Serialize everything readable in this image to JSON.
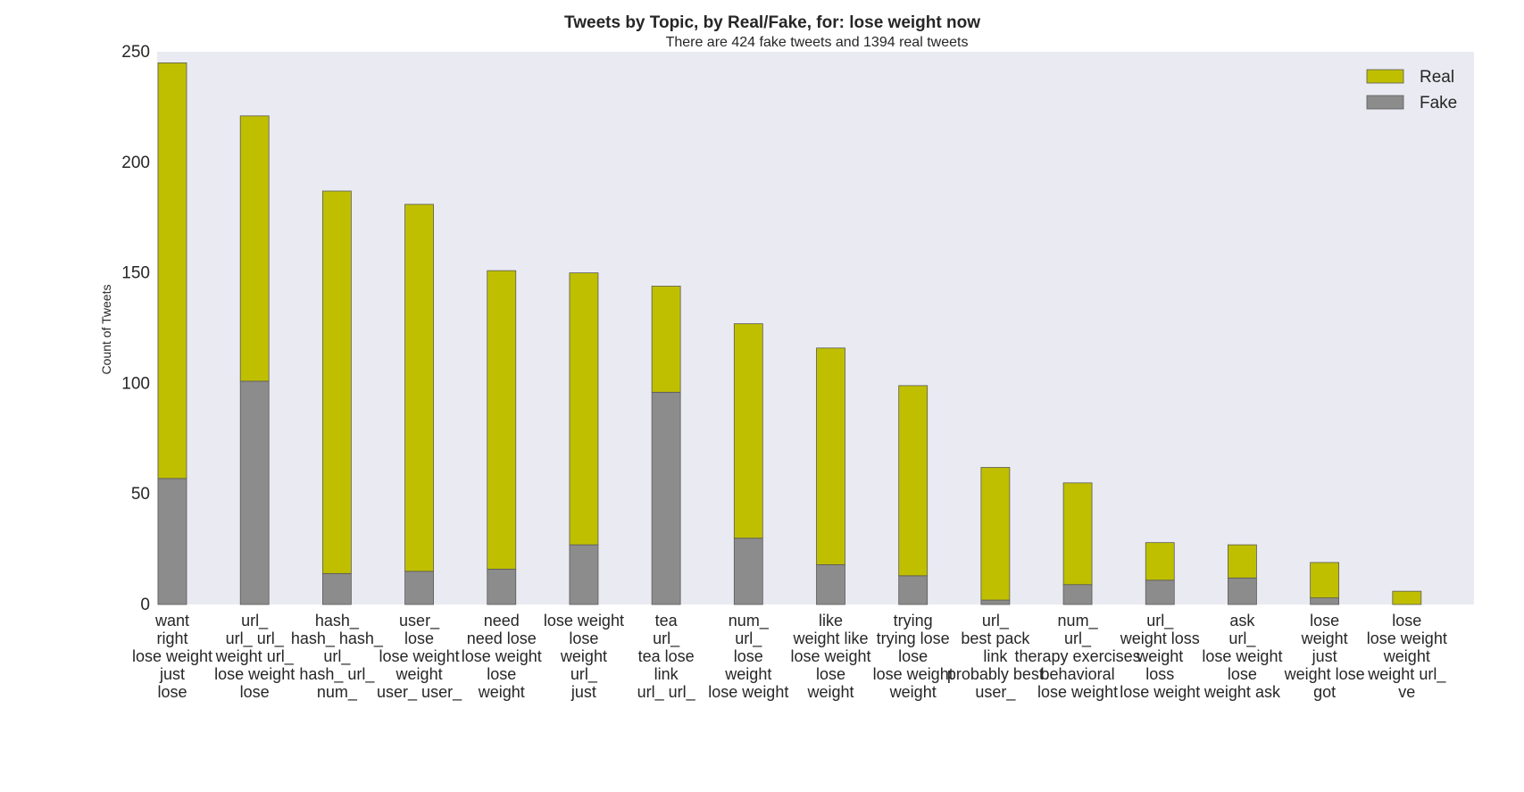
{
  "chart_data": {
    "type": "bar",
    "stacked": true,
    "title": "Tweets by Topic, by Real/Fake, for: lose weight now",
    "subtitle": "There are 424 fake tweets and 1394 real tweets",
    "xlabel": "",
    "ylabel": "Count of Tweets",
    "ylim": [
      0,
      250
    ],
    "yticks": [
      "0",
      "50",
      "100",
      "150",
      "200",
      "250"
    ],
    "grid": false,
    "legend_position": "top-right",
    "colors": {
      "Real": "#bfbf00",
      "Fake": "#8c8c8c",
      "plot_background": "#eaeaf2"
    },
    "categories": [
      [
        "want",
        "right",
        "lose weight",
        "just",
        "lose"
      ],
      [
        "url_",
        "url_ url_",
        "weight url_",
        "lose weight",
        "lose"
      ],
      [
        "hash_",
        "hash_ hash_",
        "url_",
        "hash_ url_",
        "num_"
      ],
      [
        "user_",
        "lose",
        "lose weight",
        "weight",
        "user_ user_"
      ],
      [
        "need",
        "need lose",
        "lose weight",
        "lose",
        "weight"
      ],
      [
        "lose weight",
        "lose",
        "weight",
        "url_",
        "just"
      ],
      [
        "tea",
        "url_",
        "tea lose",
        "link",
        "url_ url_"
      ],
      [
        "num_",
        "url_",
        "lose",
        "weight",
        "lose weight"
      ],
      [
        "like",
        "weight like",
        "lose weight",
        "lose",
        "weight"
      ],
      [
        "trying",
        "trying lose",
        "lose",
        "lose weight",
        "weight"
      ],
      [
        "url_",
        "best pack",
        "link",
        "probably best",
        "user_"
      ],
      [
        "num_",
        "url_",
        "therapy exercises",
        "behavioral",
        "lose weight"
      ],
      [
        "url_",
        "weight loss",
        "weight",
        "loss",
        "lose weight"
      ],
      [
        "ask",
        "url_",
        "lose weight",
        "lose",
        "weight ask"
      ],
      [
        "lose",
        "weight",
        "just",
        "weight lose",
        "got"
      ],
      [
        "lose",
        "lose weight",
        "weight",
        "weight url_",
        "ve"
      ]
    ],
    "series": [
      {
        "name": "Fake",
        "values": [
          57,
          101,
          14,
          15,
          16,
          27,
          96,
          30,
          18,
          13,
          2,
          9,
          11,
          12,
          3,
          0
        ]
      },
      {
        "name": "Real",
        "values": [
          188,
          120,
          173,
          166,
          135,
          123,
          48,
          97,
          98,
          86,
          60,
          46,
          17,
          15,
          16,
          6
        ]
      }
    ]
  }
}
